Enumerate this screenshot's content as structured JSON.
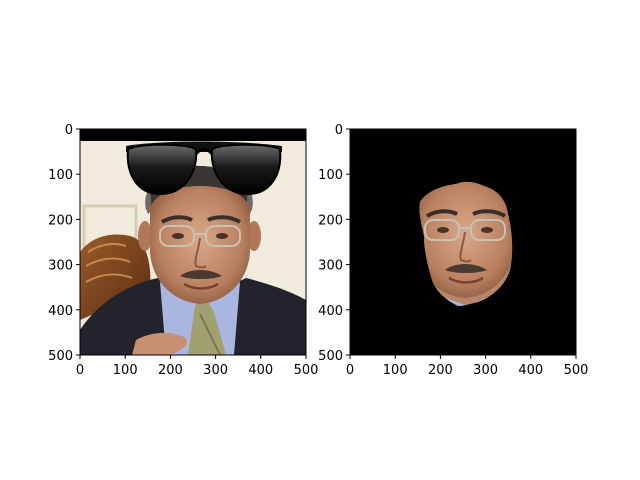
{
  "chart_data": [
    {
      "type": "image",
      "title": "",
      "xlabel": "",
      "ylabel": "",
      "xlim": [
        0,
        500
      ],
      "ylim": [
        500,
        0
      ],
      "x_ticks": [
        "0",
        "100",
        "200",
        "300",
        "400",
        "500"
      ],
      "y_ticks": [
        "0",
        "100",
        "200",
        "300",
        "400",
        "500"
      ],
      "content": "photo-face-with-sunglasses"
    },
    {
      "type": "image",
      "title": "",
      "xlabel": "",
      "ylabel": "",
      "xlim": [
        0,
        500
      ],
      "ylim": [
        500,
        0
      ],
      "x_ticks": [
        "0",
        "100",
        "200",
        "300",
        "400",
        "500"
      ],
      "y_ticks": [
        "0",
        "100",
        "200",
        "300",
        "400",
        "500"
      ],
      "content": "masked-face-on-black",
      "background_color": "#000000"
    }
  ]
}
